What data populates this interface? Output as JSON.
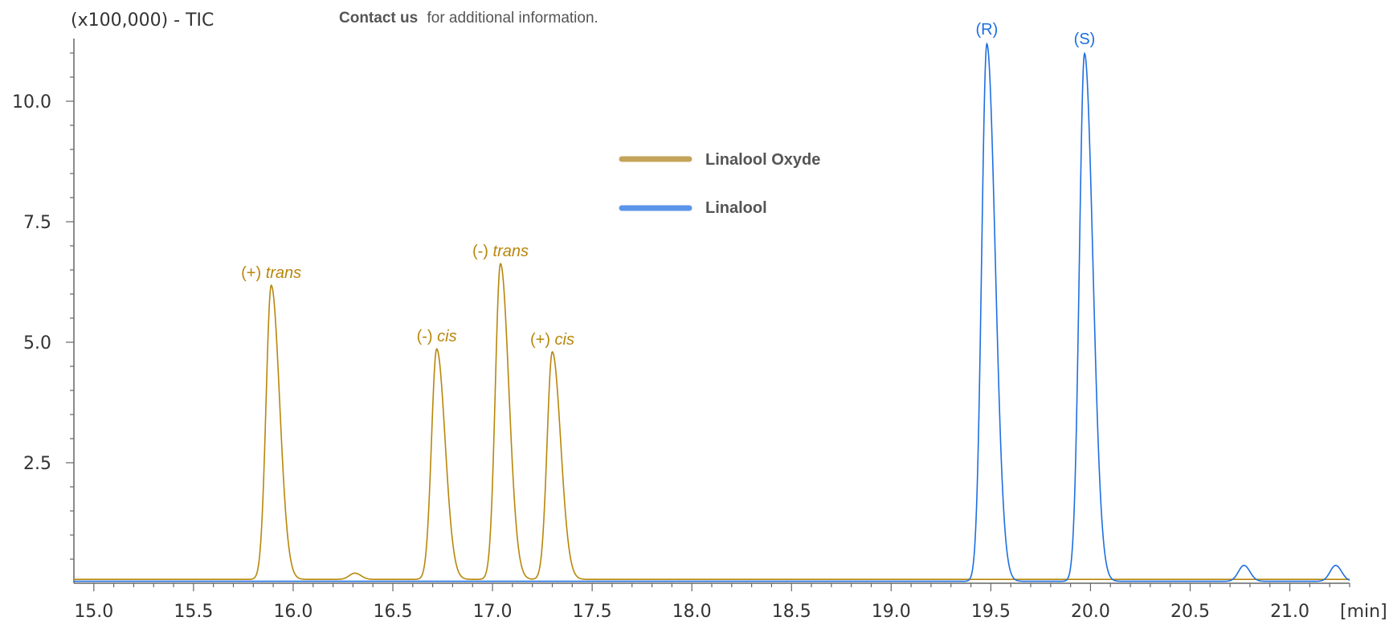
{
  "contact": {
    "link_text": "Contact us",
    "rest_text": "for additional information."
  },
  "colors": {
    "linalool_oxyde": "#b8860b",
    "linalool_oxyde_legend": "#c4a45a",
    "linalool": "#1e6fe0",
    "linalool_legend": "#5b95ea",
    "axis": "#666666",
    "text": "#333333"
  },
  "chart_data": {
    "type": "line",
    "title": "",
    "ylabel": "(x100,000) - TIC",
    "xlabel": "[min]",
    "xlim": [
      14.9,
      21.3
    ],
    "ylim": [
      0,
      11.3
    ],
    "xticks": [
      15.0,
      15.5,
      16.0,
      16.5,
      17.0,
      17.5,
      18.0,
      18.5,
      19.0,
      19.5,
      20.0,
      20.5,
      21.0
    ],
    "xtick_labels": [
      "15.0",
      "15.5",
      "16.0",
      "16.5",
      "17.0",
      "17.5",
      "18.0",
      "18.5",
      "19.0",
      "19.5",
      "20.0",
      "20.5",
      "21.0"
    ],
    "yticks": [
      2.5,
      5.0,
      7.5,
      10.0
    ],
    "ytick_labels": [
      "2.5",
      "5.0",
      "7.5",
      "10.0"
    ],
    "grid": false,
    "legend_position": "top-center",
    "series": [
      {
        "name": "Linalool Oxyde",
        "baseline": 0.08,
        "peaks": [
          {
            "x": 15.89,
            "height": 6.1,
            "label_prefix": "(+) ",
            "label_italic": "trans"
          },
          {
            "x": 16.31,
            "height": 0.13,
            "label_prefix": "",
            "label_italic": ""
          },
          {
            "x": 16.72,
            "height": 4.78,
            "label_prefix": "(-) ",
            "label_italic": "cis"
          },
          {
            "x": 17.04,
            "height": 6.55,
            "label_prefix": "(-) ",
            "label_italic": "trans"
          },
          {
            "x": 17.3,
            "height": 4.72,
            "label_prefix": "(+) ",
            "label_italic": "cis"
          }
        ]
      },
      {
        "name": "Linalool",
        "baseline": 0.04,
        "peaks": [
          {
            "x": 19.48,
            "height": 11.15,
            "label_prefix": "(R)",
            "label_italic": ""
          },
          {
            "x": 19.97,
            "height": 10.95,
            "label_prefix": "(S)",
            "label_italic": ""
          },
          {
            "x": 20.77,
            "height": 0.33,
            "label_prefix": "",
            "label_italic": ""
          },
          {
            "x": 21.23,
            "height": 0.33,
            "label_prefix": "",
            "label_italic": ""
          }
        ]
      }
    ]
  }
}
